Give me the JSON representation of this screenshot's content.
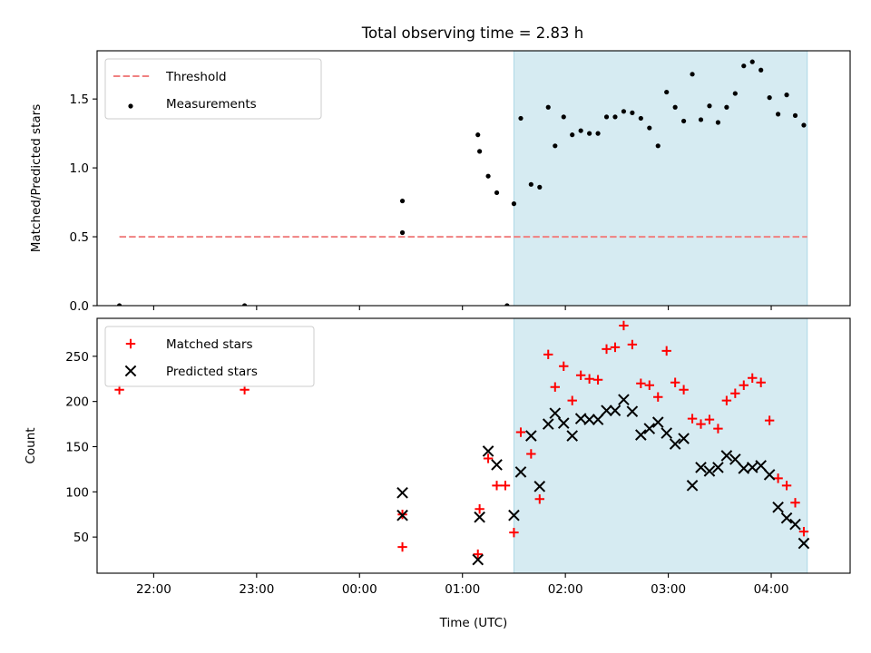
{
  "chart_data": [
    {
      "type": "scatter",
      "title": "Total observing time = 2.83 h",
      "ylabel": "Matched/Predicted stars",
      "xlabel": "",
      "xlim": [
        "21:27",
        "04:46"
      ],
      "ylim": [
        0,
        1.85
      ],
      "x_ticks": [
        "22:00",
        "23:00",
        "00:00",
        "01:00",
        "02:00",
        "03:00",
        "04:00"
      ],
      "x_tick_labels_visible": false,
      "y_ticks": [
        "0.0",
        "0.5",
        "1.0",
        "1.5"
      ],
      "y_tick_values": [
        0,
        0.5,
        1.0,
        1.5
      ],
      "shaded_region": {
        "start": "01:30",
        "end": "04:21",
        "color": "#add8e6"
      },
      "legend_position": "top-left",
      "series": [
        {
          "name": "Threshold",
          "style": "dashed-line",
          "color": "#f08080",
          "points": [
            [
              "21:40",
              0.5
            ],
            [
              "04:21",
              0.5
            ]
          ]
        },
        {
          "name": "Measurements",
          "style": "dot",
          "color": "#000000",
          "points": [
            [
              "21:40",
              0.0
            ],
            [
              "22:53",
              0.0
            ],
            [
              "00:25",
              0.53
            ],
            [
              "00:25",
              0.76
            ],
            [
              "01:09",
              1.24
            ],
            [
              "01:10",
              1.12
            ],
            [
              "01:15",
              0.94
            ],
            [
              "01:20",
              0.82
            ],
            [
              "01:26",
              0.0
            ],
            [
              "01:30",
              0.74
            ],
            [
              "01:34",
              1.36
            ],
            [
              "01:40",
              0.88
            ],
            [
              "01:45",
              0.86
            ],
            [
              "01:50",
              1.44
            ],
            [
              "01:54",
              1.16
            ],
            [
              "01:59",
              1.37
            ],
            [
              "02:04",
              1.24
            ],
            [
              "02:09",
              1.27
            ],
            [
              "02:14",
              1.25
            ],
            [
              "02:19",
              1.25
            ],
            [
              "02:24",
              1.37
            ],
            [
              "02:29",
              1.37
            ],
            [
              "02:34",
              1.41
            ],
            [
              "02:39",
              1.4
            ],
            [
              "02:44",
              1.36
            ],
            [
              "02:49",
              1.29
            ],
            [
              "02:54",
              1.16
            ],
            [
              "02:59",
              1.55
            ],
            [
              "03:04",
              1.44
            ],
            [
              "03:09",
              1.34
            ],
            [
              "03:14",
              1.68
            ],
            [
              "03:19",
              1.35
            ],
            [
              "03:24",
              1.45
            ],
            [
              "03:29",
              1.33
            ],
            [
              "03:34",
              1.44
            ],
            [
              "03:39",
              1.54
            ],
            [
              "03:44",
              1.74
            ],
            [
              "03:49",
              1.77
            ],
            [
              "03:54",
              1.71
            ],
            [
              "03:59",
              1.51
            ],
            [
              "04:04",
              1.39
            ],
            [
              "04:09",
              1.53
            ],
            [
              "04:14",
              1.38
            ],
            [
              "04:19",
              1.31
            ]
          ]
        }
      ]
    },
    {
      "type": "scatter",
      "title": "",
      "ylabel": "Count",
      "xlabel": "Time (UTC)",
      "xlim": [
        "21:27",
        "04:46"
      ],
      "ylim": [
        10,
        292
      ],
      "x_ticks": [
        "22:00",
        "23:00",
        "00:00",
        "01:00",
        "02:00",
        "03:00",
        "04:00"
      ],
      "x_tick_labels_visible": true,
      "y_ticks": [
        "50",
        "100",
        "150",
        "200",
        "250"
      ],
      "y_tick_values": [
        50,
        100,
        150,
        200,
        250
      ],
      "shaded_region": {
        "start": "01:30",
        "end": "04:21",
        "color": "#add8e6"
      },
      "legend_position": "top-left",
      "series": [
        {
          "name": "Matched stars",
          "style": "plus",
          "color": "#ff0000",
          "points": [
            [
              "21:40",
              213
            ],
            [
              "22:53",
              213
            ],
            [
              "00:25",
              39
            ],
            [
              "00:25",
              75
            ],
            [
              "01:09",
              31
            ],
            [
              "01:10",
              81
            ],
            [
              "01:15",
              137
            ],
            [
              "01:20",
              107
            ],
            [
              "01:25",
              107
            ],
            [
              "01:30",
              55
            ],
            [
              "01:34",
              166
            ],
            [
              "01:40",
              142
            ],
            [
              "01:45",
              92
            ],
            [
              "01:50",
              252
            ],
            [
              "01:54",
              216
            ],
            [
              "01:59",
              239
            ],
            [
              "02:04",
              201
            ],
            [
              "02:09",
              229
            ],
            [
              "02:14",
              225
            ],
            [
              "02:19",
              224
            ],
            [
              "02:24",
              258
            ],
            [
              "02:29",
              260
            ],
            [
              "02:34",
              284
            ],
            [
              "02:39",
              263
            ],
            [
              "02:44",
              220
            ],
            [
              "02:49",
              218
            ],
            [
              "02:54",
              205
            ],
            [
              "02:59",
              256
            ],
            [
              "03:04",
              221
            ],
            [
              "03:09",
              213
            ],
            [
              "03:14",
              181
            ],
            [
              "03:19",
              175
            ],
            [
              "03:24",
              180
            ],
            [
              "03:29",
              170
            ],
            [
              "03:34",
              201
            ],
            [
              "03:39",
              209
            ],
            [
              "03:44",
              218
            ],
            [
              "03:49",
              226
            ],
            [
              "03:54",
              221
            ],
            [
              "03:59",
              179
            ],
            [
              "04:04",
              115
            ],
            [
              "04:09",
              107
            ],
            [
              "04:14",
              88
            ],
            [
              "04:19",
              56
            ]
          ]
        },
        {
          "name": "Predicted stars",
          "style": "x",
          "color": "#000000",
          "points": [
            [
              "00:25",
              74
            ],
            [
              "00:25",
              99
            ],
            [
              "01:09",
              25
            ],
            [
              "01:10",
              72
            ],
            [
              "01:15",
              145
            ],
            [
              "01:20",
              130
            ],
            [
              "01:30",
              74
            ],
            [
              "01:34",
              122
            ],
            [
              "01:40",
              162
            ],
            [
              "01:45",
              106
            ],
            [
              "01:50",
              175
            ],
            [
              "01:54",
              187
            ],
            [
              "01:59",
              176
            ],
            [
              "02:04",
              162
            ],
            [
              "02:09",
              181
            ],
            [
              "02:14",
              180
            ],
            [
              "02:19",
              180
            ],
            [
              "02:24",
              190
            ],
            [
              "02:29",
              190
            ],
            [
              "02:34",
              202
            ],
            [
              "02:39",
              189
            ],
            [
              "02:44",
              163
            ],
            [
              "02:49",
              170
            ],
            [
              "02:54",
              177
            ],
            [
              "02:59",
              165
            ],
            [
              "03:04",
              153
            ],
            [
              "03:09",
              159
            ],
            [
              "03:14",
              107
            ],
            [
              "03:19",
              127
            ],
            [
              "03:24",
              123
            ],
            [
              "03:29",
              127
            ],
            [
              "03:34",
              140
            ],
            [
              "03:39",
              136
            ],
            [
              "03:44",
              126
            ],
            [
              "03:49",
              127
            ],
            [
              "03:54",
              129
            ],
            [
              "03:59",
              119
            ],
            [
              "04:04",
              83
            ],
            [
              "04:09",
              71
            ],
            [
              "04:14",
              64
            ],
            [
              "04:19",
              43
            ]
          ]
        }
      ]
    }
  ]
}
